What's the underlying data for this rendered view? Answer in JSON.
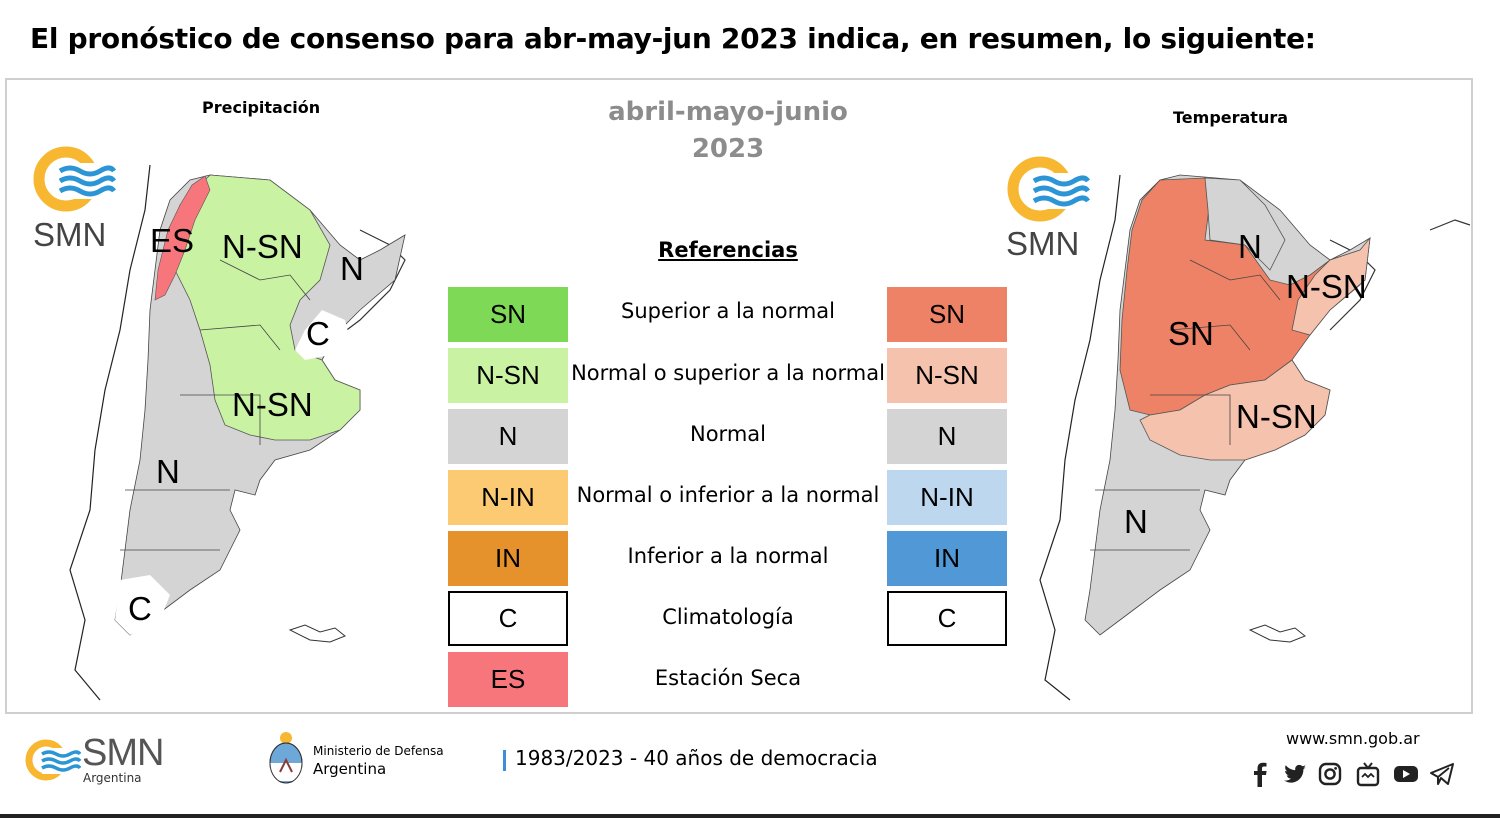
{
  "header": {
    "title": "El pronóstico de consenso para  abr-may-jun 2023 indica, en resumen, lo siguiente:"
  },
  "maps": {
    "precip": {
      "title": "Precipitación",
      "logo_text": "SMN",
      "labels": {
        "es": "ES",
        "nsn_north": "N-SN",
        "n_east": "N",
        "c": "C",
        "nsn_center": "N-SN",
        "n_west": "N",
        "c_south": "C"
      }
    },
    "temp": {
      "title": "Temperatura",
      "logo_text": "SMN",
      "labels": {
        "n_north": "N",
        "nsn_east": "N-SN",
        "sn": "SN",
        "nsn_center": "N-SN",
        "n_south": "N"
      }
    }
  },
  "center": {
    "period": "abril-mayo-junio",
    "year": "2023",
    "references_title": "Referencias"
  },
  "legend": [
    {
      "code_precip": "SN",
      "code_temp": "SN",
      "label": "Superior a la normal",
      "color_precip": "#7ed957",
      "color_temp": "#ee8266"
    },
    {
      "code_precip": "N-SN",
      "code_temp": "N-SN",
      "label": "Normal o superior a la normal",
      "color_precip": "#c9f3a3",
      "color_temp": "#f4c2ad"
    },
    {
      "code_precip": "N",
      "code_temp": "N",
      "label": "Normal",
      "color_precip": "#d4d4d4",
      "color_temp": "#d4d4d4"
    },
    {
      "code_precip": "N-IN",
      "code_temp": "N-IN",
      "label": "Normal o inferior a la normal",
      "color_precip": "#fcca72",
      "color_temp": "#bcd7ee"
    },
    {
      "code_precip": "IN",
      "code_temp": "IN",
      "label": "Inferior a la normal",
      "color_precip": "#e5922c",
      "color_temp": "#5199d6"
    },
    {
      "code_precip": "C",
      "code_temp": "C",
      "label": "Climatología",
      "color_precip": "#ffffff",
      "color_temp": "#ffffff"
    },
    {
      "code_precip": "ES",
      "label": "Estación Seca",
      "color_precip": "#f7767c"
    }
  ],
  "footer": {
    "logo_text": "SMN",
    "logo_sub": "Argentina",
    "ministry_line1": "Ministerio de Defensa",
    "ministry_line2": "Argentina",
    "democracy": "1983/2023 - 40 años de democracia",
    "url": "www.smn.gob.ar",
    "social_icons": [
      "facebook-icon",
      "twitter-icon",
      "instagram-icon",
      "tv-icon",
      "youtube-icon",
      "telegram-icon"
    ]
  }
}
